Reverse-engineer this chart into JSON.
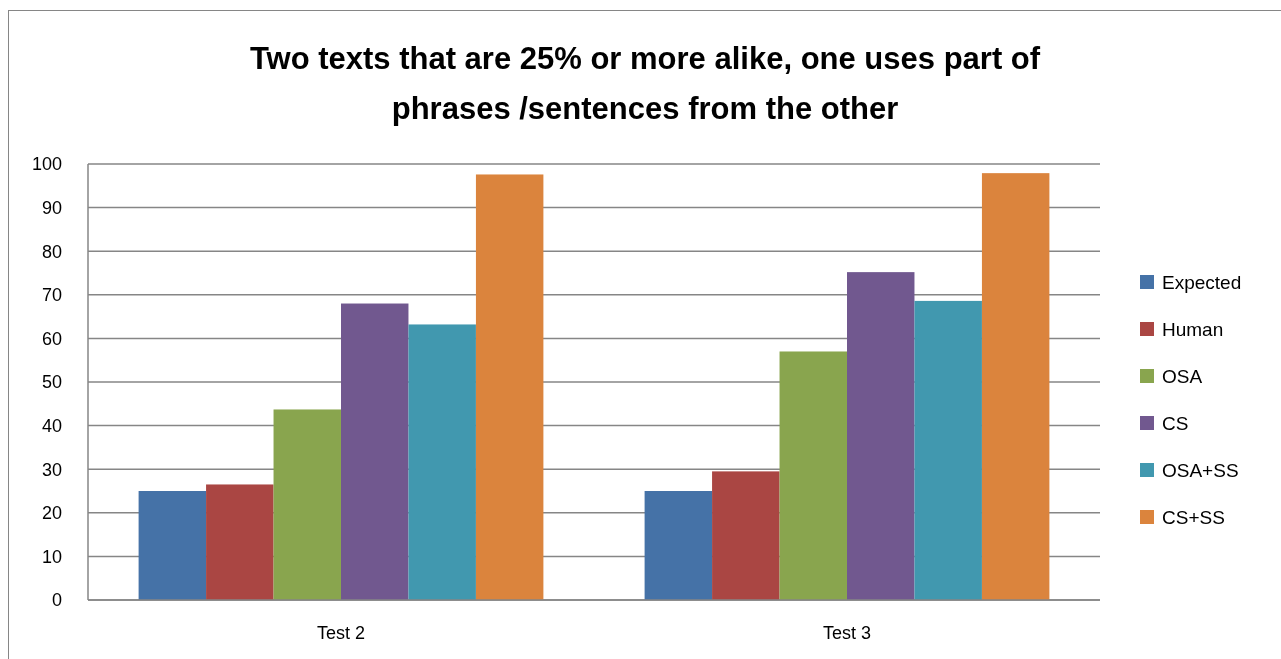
{
  "chart_data": {
    "type": "bar",
    "title": "Two texts that are 25% or more alike, one uses part of\nphrases /sentences from the other",
    "categories": [
      "Test 2",
      "Test 3"
    ],
    "series": [
      {
        "name": "Expected",
        "color": "#4572a7",
        "values": [
          25,
          25
        ]
      },
      {
        "name": "Human",
        "color": "#aa4643",
        "values": [
          26.5,
          29.5
        ]
      },
      {
        "name": "OSA",
        "color": "#89a54e",
        "values": [
          43.7,
          57
        ]
      },
      {
        "name": "CS",
        "color": "#71588f",
        "values": [
          68,
          75.2
        ]
      },
      {
        "name": "OSA+SS",
        "color": "#4198af",
        "values": [
          63.2,
          68.6
        ]
      },
      {
        "name": "CS+SS",
        "color": "#db843d",
        "values": [
          97.6,
          97.9
        ]
      }
    ],
    "ylim": [
      0,
      100
    ],
    "yticks": [
      0,
      10,
      20,
      30,
      40,
      50,
      60,
      70,
      80,
      90,
      100
    ],
    "grid": "y",
    "legend": "right"
  }
}
